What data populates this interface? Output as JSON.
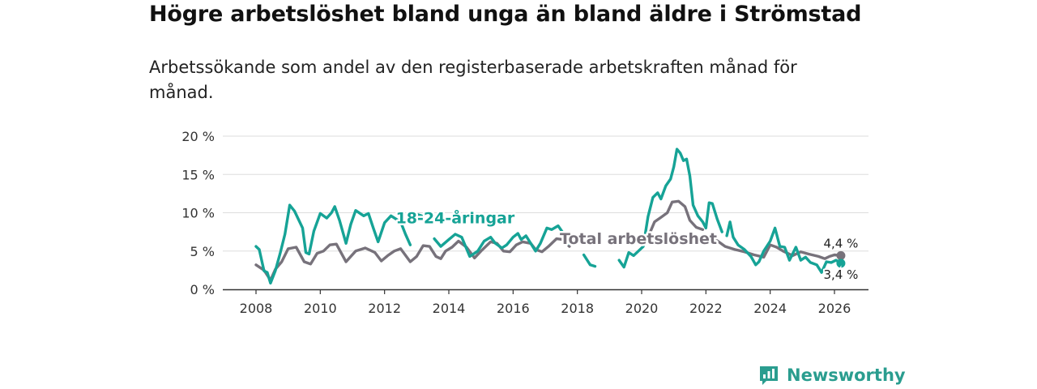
{
  "header": {
    "title": "Högre arbetslöshet bland unga än bland äldre i Strömstad",
    "subtitle": "Arbetssökande som andel av den registerbaserade arbetskraften månad för månad."
  },
  "brand": {
    "name": "Newsworthy"
  },
  "colors": {
    "youth": "#16a396",
    "total": "#77727b",
    "grid": "#dddddd",
    "axis": "#333333",
    "brand": "#2a9d8f"
  },
  "chart_data": {
    "type": "line",
    "title": "Högre arbetslöshet bland unga än bland äldre i Strömstad",
    "subtitle": "Arbetssökande som andel av den registerbaserade arbetskraften månad för månad.",
    "xlabel": "",
    "ylabel": "",
    "xlim": [
      2007.5,
      2026.7
    ],
    "ylim": [
      0,
      20
    ],
    "y_ticks": [
      0,
      5,
      10,
      15,
      20
    ],
    "y_tick_labels": [
      "0 %",
      "5 %",
      "10 %",
      "15 %",
      "20 %"
    ],
    "x_ticks": [
      2008,
      2010,
      2012,
      2014,
      2016,
      2018,
      2020,
      2022,
      2024,
      2026
    ],
    "x_tick_labels": [
      "2008",
      "2010",
      "2012",
      "2014",
      "2016",
      "2018",
      "2020",
      "2022",
      "2024",
      "2026"
    ],
    "grid": true,
    "series": [
      {
        "name": "Total arbetslöshet",
        "label": "Total arbetslöshet",
        "color": "#77727b",
        "end_label": "4,4 %",
        "segments": [
          [
            [
              2008.0,
              3.2
            ],
            [
              2008.25,
              2.5
            ],
            [
              2008.45,
              1.2
            ],
            [
              2008.6,
              2.6
            ],
            [
              2008.8,
              3.6
            ],
            [
              2009.0,
              5.3
            ],
            [
              2009.25,
              5.5
            ],
            [
              2009.5,
              3.6
            ],
            [
              2009.7,
              3.3
            ],
            [
              2009.9,
              4.7
            ],
            [
              2010.1,
              5.0
            ],
            [
              2010.3,
              5.8
            ],
            [
              2010.5,
              5.9
            ],
            [
              2010.8,
              3.6
            ],
            [
              2011.1,
              5.0
            ],
            [
              2011.4,
              5.4
            ],
            [
              2011.7,
              4.8
            ],
            [
              2011.9,
              3.7
            ],
            [
              2012.1,
              4.4
            ],
            [
              2012.3,
              5.0
            ],
            [
              2012.5,
              5.3
            ],
            [
              2012.8,
              3.6
            ],
            [
              2013.0,
              4.3
            ],
            [
              2013.2,
              5.7
            ],
            [
              2013.4,
              5.6
            ],
            [
              2013.6,
              4.3
            ],
            [
              2013.75,
              4.0
            ],
            [
              2013.9,
              5.0
            ],
            [
              2014.1,
              5.5
            ],
            [
              2014.3,
              6.3
            ],
            [
              2014.55,
              5.5
            ],
            [
              2014.8,
              4.1
            ],
            [
              2015.0,
              5.0
            ],
            [
              2015.3,
              6.2
            ],
            [
              2015.5,
              6.0
            ],
            [
              2015.7,
              5.0
            ],
            [
              2015.9,
              4.9
            ],
            [
              2016.1,
              5.8
            ],
            [
              2016.3,
              6.2
            ],
            [
              2016.55,
              6.0
            ],
            [
              2016.7,
              5.2
            ],
            [
              2016.9,
              4.9
            ],
            [
              2017.1,
              5.6
            ],
            [
              2017.35,
              6.6
            ],
            [
              2017.55,
              6.5
            ],
            [
              2017.75,
              5.6
            ]
          ],
          [
            [
              2020.2,
              6.8
            ],
            [
              2020.4,
              8.8
            ],
            [
              2020.6,
              9.4
            ],
            [
              2020.8,
              10.0
            ],
            [
              2020.95,
              11.4
            ],
            [
              2021.15,
              11.5
            ],
            [
              2021.35,
              10.8
            ],
            [
              2021.5,
              9.0
            ],
            [
              2021.7,
              8.1
            ],
            [
              2021.9,
              7.8
            ]
          ],
          [
            [
              2022.3,
              6.5
            ],
            [
              2022.6,
              5.6
            ],
            [
              2022.9,
              5.2
            ],
            [
              2023.2,
              4.9
            ],
            [
              2023.5,
              4.5
            ],
            [
              2023.8,
              4.2
            ],
            [
              2024.0,
              5.8
            ],
            [
              2024.2,
              5.5
            ],
            [
              2024.4,
              5.0
            ],
            [
              2024.7,
              4.4
            ],
            [
              2024.95,
              4.9
            ],
            [
              2025.2,
              4.6
            ],
            [
              2025.5,
              4.3
            ],
            [
              2025.7,
              4.0
            ],
            [
              2025.85,
              4.3
            ],
            [
              2026.0,
              4.5
            ],
            [
              2026.2,
              4.4
            ]
          ]
        ]
      },
      {
        "name": "18-24-åringar",
        "label": "18-24-åringar",
        "color": "#16a396",
        "end_label": "3,4 %",
        "segments": [
          [
            [
              2008.0,
              5.6
            ],
            [
              2008.1,
              5.2
            ],
            [
              2008.25,
              2.4
            ],
            [
              2008.35,
              2.2
            ],
            [
              2008.45,
              0.8
            ],
            [
              2008.6,
              2.4
            ],
            [
              2008.75,
              4.7
            ],
            [
              2008.9,
              7.2
            ],
            [
              2009.05,
              11.0
            ],
            [
              2009.2,
              10.2
            ],
            [
              2009.45,
              8.0
            ],
            [
              2009.55,
              4.8
            ],
            [
              2009.65,
              4.6
            ],
            [
              2009.8,
              7.6
            ],
            [
              2010.0,
              9.9
            ],
            [
              2010.2,
              9.3
            ],
            [
              2010.35,
              10.0
            ],
            [
              2010.45,
              10.8
            ],
            [
              2010.6,
              9.0
            ],
            [
              2010.8,
              6.0
            ],
            [
              2010.95,
              8.5
            ],
            [
              2011.1,
              10.3
            ],
            [
              2011.35,
              9.6
            ],
            [
              2011.5,
              9.9
            ],
            [
              2011.65,
              8.0
            ],
            [
              2011.8,
              6.2
            ],
            [
              2012.0,
              8.7
            ],
            [
              2012.2,
              9.6
            ],
            [
              2012.35,
              9.2
            ],
            [
              2012.5,
              8.8
            ],
            [
              2012.65,
              7.2
            ],
            [
              2012.8,
              5.8
            ]
          ],
          [
            [
              2013.0,
              9.8
            ],
            [
              2013.15,
              9.6
            ]
          ],
          [
            [
              2013.55,
              6.6
            ],
            [
              2013.75,
              5.6
            ],
            [
              2014.0,
              6.5
            ],
            [
              2014.2,
              7.2
            ],
            [
              2014.4,
              6.8
            ],
            [
              2014.65,
              4.3
            ],
            [
              2014.9,
              5.0
            ],
            [
              2015.1,
              6.3
            ],
            [
              2015.3,
              6.8
            ],
            [
              2015.45,
              6.0
            ],
            [
              2015.65,
              5.4
            ],
            [
              2015.8,
              5.8
            ],
            [
              2016.0,
              6.8
            ],
            [
              2016.15,
              7.3
            ],
            [
              2016.25,
              6.5
            ],
            [
              2016.4,
              7.0
            ],
            [
              2016.55,
              6.0
            ],
            [
              2016.7,
              5.0
            ],
            [
              2016.85,
              6.0
            ],
            [
              2017.05,
              8.0
            ],
            [
              2017.2,
              7.8
            ],
            [
              2017.4,
              8.3
            ],
            [
              2017.55,
              7.4
            ],
            [
              2017.7,
              6.0
            ],
            [
              2017.85,
              5.9
            ],
            [
              2017.95,
              6.3
            ]
          ],
          [
            [
              2018.2,
              4.5
            ],
            [
              2018.4,
              3.2
            ],
            [
              2018.55,
              3.0
            ]
          ],
          [
            [
              2019.3,
              3.8
            ],
            [
              2019.45,
              2.9
            ],
            [
              2019.6,
              4.8
            ],
            [
              2019.75,
              4.4
            ],
            [
              2019.9,
              5.0
            ],
            [
              2020.05,
              5.6
            ],
            [
              2020.2,
              9.5
            ],
            [
              2020.35,
              12.0
            ],
            [
              2020.5,
              12.6
            ],
            [
              2020.6,
              11.8
            ],
            [
              2020.75,
              13.5
            ],
            [
              2020.9,
              14.4
            ],
            [
              2021.0,
              16.0
            ],
            [
              2021.1,
              18.3
            ],
            [
              2021.2,
              17.8
            ],
            [
              2021.3,
              16.8
            ],
            [
              2021.4,
              17.0
            ],
            [
              2021.5,
              14.8
            ],
            [
              2021.6,
              11.0
            ],
            [
              2021.75,
              9.6
            ],
            [
              2021.9,
              8.8
            ],
            [
              2022.0,
              8.0
            ],
            [
              2022.1,
              11.3
            ],
            [
              2022.2,
              11.2
            ],
            [
              2022.35,
              9.2
            ],
            [
              2022.5,
              7.5
            ]
          ],
          [
            [
              2022.65,
              7.0
            ],
            [
              2022.75,
              8.8
            ],
            [
              2022.85,
              6.8
            ],
            [
              2023.0,
              5.8
            ],
            [
              2023.2,
              5.2
            ],
            [
              2023.4,
              4.3
            ],
            [
              2023.55,
              3.2
            ],
            [
              2023.65,
              3.6
            ],
            [
              2023.8,
              5.0
            ],
            [
              2024.0,
              6.3
            ],
            [
              2024.15,
              8.0
            ],
            [
              2024.3,
              5.6
            ],
            [
              2024.45,
              5.5
            ],
            [
              2024.6,
              3.8
            ],
            [
              2024.8,
              5.5
            ],
            [
              2024.95,
              3.8
            ],
            [
              2025.1,
              4.2
            ],
            [
              2025.25,
              3.5
            ],
            [
              2025.45,
              3.2
            ],
            [
              2025.6,
              2.2
            ],
            [
              2025.75,
              3.6
            ],
            [
              2025.9,
              3.5
            ],
            [
              2026.05,
              3.8
            ],
            [
              2026.2,
              3.4
            ]
          ]
        ]
      }
    ],
    "annotations": [
      {
        "text": "18-24-åringar",
        "series": "18-24-åringar",
        "x": 2014.2,
        "y": 8.6
      },
      {
        "text": "Total arbetslöshet",
        "series": "Total arbetslöshet",
        "x": 2019.9,
        "y": 5.9
      }
    ]
  }
}
